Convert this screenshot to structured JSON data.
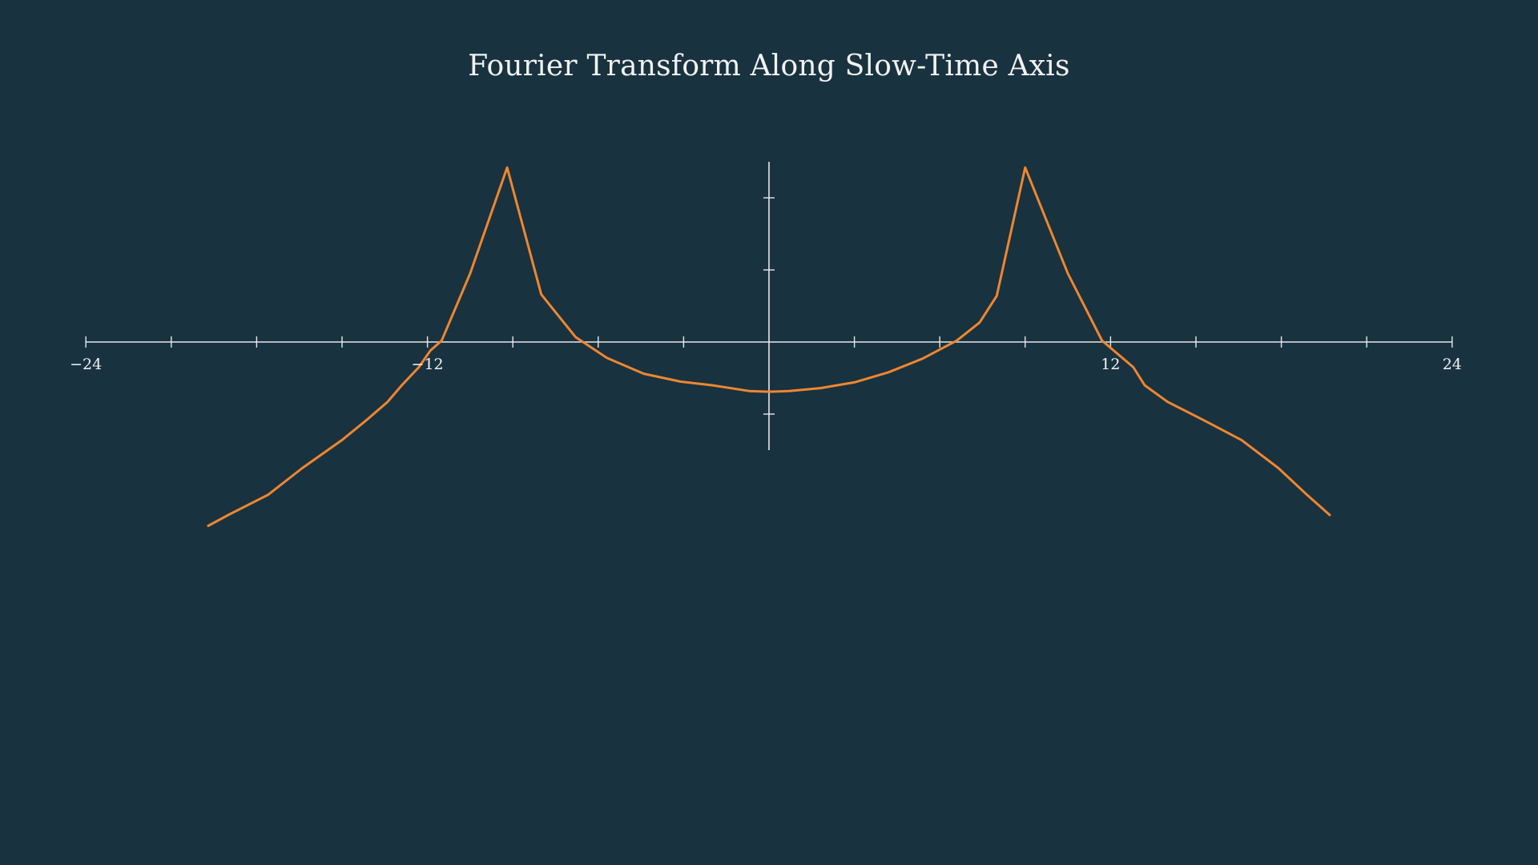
{
  "chart_data": {
    "type": "line",
    "title": "Fourier Transform Along Slow-Time Axis",
    "xlabel": "",
    "ylabel": "",
    "xlim": [
      -24,
      24
    ],
    "ylim": [
      -1.5,
      2.5
    ],
    "grid": false,
    "x_ticks": [
      -24,
      -21,
      -18,
      -15,
      -12,
      -9,
      -6,
      -3,
      0,
      3,
      6,
      9,
      12,
      15,
      18,
      21,
      24
    ],
    "x_tick_labels": [
      {
        "value": -24,
        "label": "−24"
      },
      {
        "value": -12,
        "label": "−12"
      },
      {
        "value": 12,
        "label": "12"
      },
      {
        "value": 24,
        "label": "24"
      }
    ],
    "y_ticks": [
      -1,
      1,
      2
    ],
    "series": [
      {
        "color": "#f0862f",
        "x": [
          -19.7,
          -19.0,
          -17.6,
          -16.4,
          -15.0,
          -14.1,
          -13.4,
          -12.9,
          -12.3,
          -11.9,
          -11.5,
          -10.5,
          -9.2,
          -8.0,
          -6.8,
          -5.7,
          -4.4,
          -3.1,
          -2.0,
          -0.7,
          0.0,
          0.7,
          1.8,
          3.0,
          4.2,
          5.4,
          6.6,
          7.4,
          8.0,
          9.0,
          10.5,
          11.7,
          12.8,
          13.2,
          14.0,
          15.2,
          16.6,
          17.9,
          18.9,
          19.7
        ],
        "y": [
          -2.55,
          -2.4,
          -2.12,
          -1.75,
          -1.36,
          -1.07,
          -0.83,
          -0.6,
          -0.35,
          -0.12,
          0.02,
          0.95,
          2.42,
          0.66,
          0.07,
          -0.22,
          -0.44,
          -0.55,
          -0.6,
          -0.68,
          -0.69,
          -0.68,
          -0.64,
          -0.56,
          -0.42,
          -0.23,
          0.02,
          0.27,
          0.64,
          2.42,
          0.95,
          0.02,
          -0.35,
          -0.6,
          -0.83,
          -1.07,
          -1.36,
          -1.75,
          -2.12,
          -2.4
        ]
      }
    ]
  }
}
